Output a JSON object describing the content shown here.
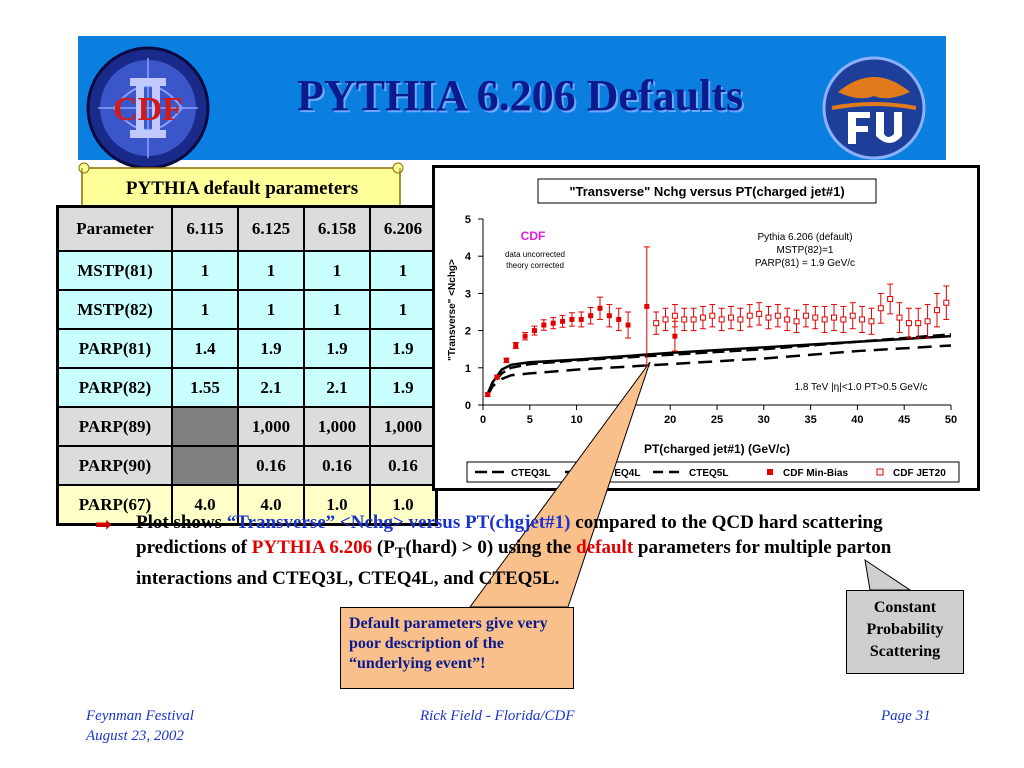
{
  "title": "PYTHIA 6.206 Defaults",
  "logo_left": {
    "text": "CDF"
  },
  "scroll_label": "PYTHIA default parameters",
  "table": {
    "headers": [
      "Parameter",
      "6.115",
      "6.125",
      "6.158",
      "6.206"
    ],
    "rows": [
      [
        "MSTP(81)",
        "1",
        "1",
        "1",
        "1"
      ],
      [
        "MSTP(82)",
        "1",
        "1",
        "1",
        "1"
      ],
      [
        "PARP(81)",
        "1.4",
        "1.9",
        "1.9",
        "1.9"
      ],
      [
        "PARP(82)",
        "1.55",
        "2.1",
        "2.1",
        "1.9"
      ],
      [
        "PARP(89)",
        "",
        "1,000",
        "1,000",
        "1,000"
      ],
      [
        "PARP(90)",
        "",
        "0.16",
        "0.16",
        "0.16"
      ],
      [
        "PARP(67)",
        "4.0",
        "4.0",
        "1.0",
        "1.0"
      ]
    ]
  },
  "chart_data": {
    "type": "scatter",
    "title": "\"Transverse\" Nchg versus PT(charged jet#1)",
    "xlabel": "PT(charged jet#1)  (GeV/c)",
    "ylabel": "\"Transverse\" <Nchg>",
    "xlim": [
      0,
      50
    ],
    "ylim": [
      0,
      5
    ],
    "xticks": [
      "0",
      "5",
      "10",
      "15",
      "20",
      "25",
      "30",
      "35",
      "40",
      "45",
      "50"
    ],
    "yticks": [
      "0",
      "1",
      "2",
      "3",
      "4",
      "5"
    ],
    "annotations": {
      "cdf": "CDF",
      "cdf_note1": "data uncorrected",
      "cdf_note2": "theory corrected",
      "pythia1": "Pythia 6.206 (default)",
      "pythia2": "MSTP(82)=1",
      "pythia3": "PARP(81) = 1.9 GeV/c",
      "cuts": "1.8 TeV |η|<1.0 PT>0.5 GeV/c"
    },
    "legend": [
      "CTEQ3L",
      "CTEQ4L",
      "CTEQ5L",
      "CDF Min-Bias",
      "CDF JET20"
    ],
    "series": [
      {
        "name": "CTEQ3L",
        "style": "dash",
        "x": [
          0.5,
          1,
          2,
          3,
          5,
          10,
          20,
          30,
          40,
          50
        ],
        "y": [
          0.3,
          0.55,
          0.85,
          1.0,
          1.1,
          1.2,
          1.35,
          1.5,
          1.7,
          1.9
        ]
      },
      {
        "name": "CTEQ4L",
        "style": "solid",
        "x": [
          0.5,
          1,
          2,
          3,
          5,
          10,
          20,
          30,
          40,
          50
        ],
        "y": [
          0.3,
          0.6,
          0.95,
          1.08,
          1.15,
          1.22,
          1.4,
          1.55,
          1.7,
          1.85
        ]
      },
      {
        "name": "CTEQ5L",
        "style": "dash",
        "x": [
          0.5,
          1,
          2,
          3,
          5,
          10,
          20,
          30,
          40,
          50
        ],
        "y": [
          0.25,
          0.5,
          0.7,
          0.8,
          0.85,
          0.95,
          1.1,
          1.25,
          1.45,
          1.6
        ]
      },
      {
        "name": "CDF Min-Bias",
        "marker": "filled",
        "x": [
          0.5,
          1.5,
          2.5,
          3.5,
          4.5,
          5.5,
          6.5,
          7.5,
          8.5,
          9.5,
          10.5,
          11.5,
          12.5,
          13.5,
          14.5,
          15.5,
          17.5,
          20.5
        ],
        "y": [
          0.28,
          0.75,
          1.2,
          1.6,
          1.85,
          2.0,
          2.15,
          2.2,
          2.25,
          2.3,
          2.3,
          2.4,
          2.6,
          2.4,
          2.3,
          2.15,
          2.65,
          1.85
        ],
        "err": [
          0.05,
          0.05,
          0.06,
          0.08,
          0.1,
          0.12,
          0.14,
          0.15,
          0.16,
          0.18,
          0.2,
          0.22,
          0.3,
          0.3,
          0.3,
          0.35,
          1.6,
          0.4
        ]
      },
      {
        "name": "CDF JET20",
        "marker": "open",
        "x": [
          18.5,
          19.5,
          20.5,
          21.5,
          22.5,
          23.5,
          24.5,
          25.5,
          26.5,
          27.5,
          28.5,
          29.5,
          30.5,
          31.5,
          32.5,
          33.5,
          34.5,
          35.5,
          36.5,
          37.5,
          38.5,
          39.5,
          40.5,
          41.5,
          42.5,
          43.5,
          44.5,
          45.5,
          46.5,
          47.5,
          48.5,
          49.5
        ],
        "y": [
          2.2,
          2.3,
          2.4,
          2.3,
          2.3,
          2.35,
          2.4,
          2.3,
          2.35,
          2.3,
          2.4,
          2.45,
          2.35,
          2.4,
          2.3,
          2.25,
          2.4,
          2.35,
          2.3,
          2.35,
          2.3,
          2.4,
          2.3,
          2.25,
          2.6,
          2.85,
          2.35,
          2.2,
          2.2,
          2.25,
          2.55,
          2.75
        ],
        "err": [
          0.3,
          0.3,
          0.3,
          0.3,
          0.3,
          0.3,
          0.3,
          0.3,
          0.3,
          0.3,
          0.3,
          0.3,
          0.3,
          0.3,
          0.3,
          0.3,
          0.3,
          0.3,
          0.35,
          0.35,
          0.35,
          0.35,
          0.35,
          0.35,
          0.4,
          0.4,
          0.4,
          0.4,
          0.4,
          0.45,
          0.45,
          0.45
        ]
      }
    ]
  },
  "bullet": {
    "p1": "Plot shows ",
    "p2": "“Transverse” <Nchg> versus PT(chgjet#1)",
    "p3": " compared to the QCD hard scattering predictions of ",
    "p4": "PYTHIA 6.206",
    "p5": "  (P",
    "p5sub": "T",
    "p6": "(hard) > 0) using the ",
    "p7": "default",
    "p8": " parameters for multiple parton interactions and CTEQ3L, CTEQ4L, and CTEQ5L."
  },
  "callout_default": "Default parameters give very poor description of the “underlying event”!",
  "callout_constant": "Constant Probability Scattering",
  "footer": {
    "left1": "Feynman Festival",
    "left2": "August 23, 2002",
    "center": "Rick Field - Florida/CDF",
    "right": "Page 31"
  },
  "colors": {
    "banner": "#0a7fe0",
    "title": "#0b1a8c",
    "data_red": "#e00000"
  }
}
